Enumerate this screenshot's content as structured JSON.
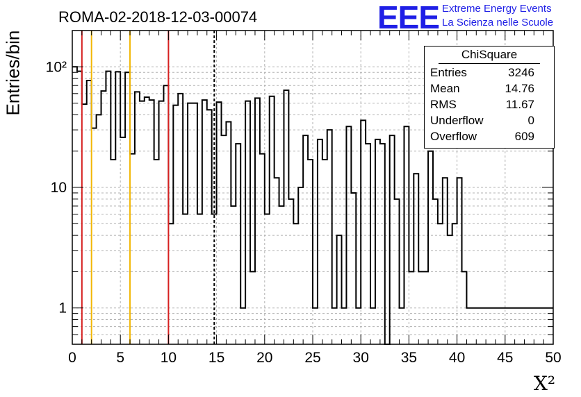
{
  "header": {
    "run_title": "ROMA-02-2018-12-03-00074",
    "logo": "EEE",
    "logo_line1": "Extreme Energy Events",
    "logo_line2": "La Scienza nelle Scuole"
  },
  "stats_box": {
    "title": "ChiSquare",
    "rows": [
      {
        "key": "Entries",
        "value": "3246"
      },
      {
        "key": "Mean",
        "value": "14.76"
      },
      {
        "key": "RMS",
        "value": "11.67"
      },
      {
        "key": "Underflow",
        "value": "0"
      },
      {
        "key": "Overflow",
        "value": "609"
      }
    ]
  },
  "chart_data": {
    "type": "bar",
    "style": "step-histogram",
    "title": "ROMA-02-2018-12-03-00074",
    "xlabel": "X²",
    "ylabel": "Entries/bin",
    "xlim": [
      0,
      50
    ],
    "ylim": [
      0.5,
      200
    ],
    "yscale": "log",
    "grid": true,
    "bin_width": 0.5,
    "x_ticks": [
      0,
      5,
      10,
      15,
      20,
      25,
      30,
      35,
      40,
      45,
      50
    ],
    "y_tick_labels": [
      {
        "value": 1,
        "label": "1"
      },
      {
        "value": 10,
        "label": "10"
      },
      {
        "value": 100,
        "label": "10²"
      }
    ],
    "values": [
      100,
      92,
      49,
      77,
      31,
      40,
      63,
      92,
      17,
      91,
      26,
      90,
      19,
      62,
      52,
      56,
      53,
      17,
      52,
      70,
      5,
      48,
      60,
      6,
      50,
      50,
      6,
      53,
      44,
      6,
      51,
      27,
      35,
      7,
      23,
      1,
      52,
      2,
      55,
      19,
      6,
      57,
      12,
      7,
      64,
      8,
      5,
      10,
      27,
      17,
      1,
      25,
      17,
      30,
      1,
      4,
      1,
      32,
      9,
      1,
      36,
      23,
      1,
      25,
      23,
      0,
      27,
      8,
      1,
      32,
      2,
      13,
      2,
      2,
      20,
      8,
      5,
      12,
      4,
      5,
      12,
      2,
      1,
      1,
      1,
      1,
      1,
      1,
      1,
      1,
      1,
      1,
      1,
      1,
      1,
      1,
      1,
      1,
      1,
      1
    ],
    "values_note_hidden": "",
    "vertical_lines": [
      {
        "x": 1,
        "color": "#d62020",
        "style": "solid"
      },
      {
        "x": 2,
        "color": "#f2b705",
        "style": "solid"
      },
      {
        "x": 6,
        "color": "#f2b705",
        "style": "solid"
      },
      {
        "x": 10,
        "color": "#d62020",
        "style": "solid"
      },
      {
        "x": 14.76,
        "color": "#000000",
        "style": "dashed"
      }
    ]
  }
}
